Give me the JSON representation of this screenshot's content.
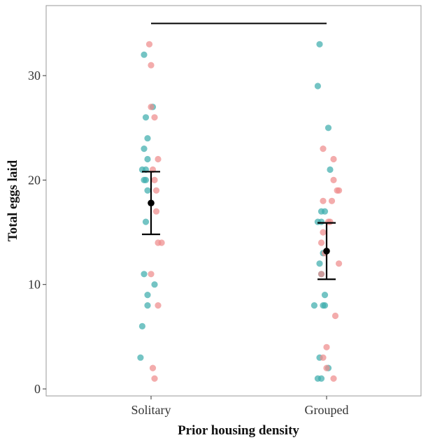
{
  "chart_data": {
    "type": "scatter",
    "xlabel": "Prior housing density",
    "ylabel": "Total eggs laid",
    "categories": [
      "Solitary",
      "Grouped"
    ],
    "ylim": [
      -0.8,
      35
    ],
    "yticks": [
      0,
      10,
      20,
      30
    ],
    "grid": false,
    "legend": "none",
    "colors": {
      "teal": "#3fadad",
      "pink": "#ee8c8c",
      "summary": "#000000"
    },
    "series": [
      {
        "group": "Solitary",
        "color": "teal",
        "points": [
          {
            "x": 0.96,
            "y": 32
          },
          {
            "x": 1.01,
            "y": 27
          },
          {
            "x": 0.97,
            "y": 26
          },
          {
            "x": 0.98,
            "y": 24
          },
          {
            "x": 0.96,
            "y": 23
          },
          {
            "x": 0.98,
            "y": 22
          },
          {
            "x": 0.95,
            "y": 21
          },
          {
            "x": 0.97,
            "y": 21
          },
          {
            "x": 0.96,
            "y": 20
          },
          {
            "x": 0.97,
            "y": 20
          },
          {
            "x": 0.98,
            "y": 19
          },
          {
            "x": 0.97,
            "y": 16
          },
          {
            "x": 0.96,
            "y": 11
          },
          {
            "x": 1.02,
            "y": 10
          },
          {
            "x": 0.98,
            "y": 9
          },
          {
            "x": 0.98,
            "y": 8
          },
          {
            "x": 0.95,
            "y": 6
          },
          {
            "x": 0.94,
            "y": 3
          }
        ]
      },
      {
        "group": "Solitary",
        "color": "pink",
        "points": [
          {
            "x": 0.99,
            "y": 33
          },
          {
            "x": 1.0,
            "y": 31
          },
          {
            "x": 1.0,
            "y": 27
          },
          {
            "x": 1.02,
            "y": 26
          },
          {
            "x": 1.04,
            "y": 22
          },
          {
            "x": 1.01,
            "y": 21
          },
          {
            "x": 1.02,
            "y": 20
          },
          {
            "x": 1.03,
            "y": 19
          },
          {
            "x": 1.03,
            "y": 17
          },
          {
            "x": 1.04,
            "y": 14
          },
          {
            "x": 1.06,
            "y": 14
          },
          {
            "x": 1.0,
            "y": 11
          },
          {
            "x": 1.04,
            "y": 8
          },
          {
            "x": 1.01,
            "y": 2
          },
          {
            "x": 1.02,
            "y": 1
          }
        ]
      },
      {
        "group": "Grouped",
        "color": "teal",
        "points": [
          {
            "x": 1.96,
            "y": 33
          },
          {
            "x": 1.95,
            "y": 29
          },
          {
            "x": 2.01,
            "y": 25
          },
          {
            "x": 2.02,
            "y": 21
          },
          {
            "x": 1.97,
            "y": 17
          },
          {
            "x": 1.99,
            "y": 17
          },
          {
            "x": 1.95,
            "y": 16
          },
          {
            "x": 1.97,
            "y": 16
          },
          {
            "x": 1.98,
            "y": 13
          },
          {
            "x": 1.96,
            "y": 12
          },
          {
            "x": 1.97,
            "y": 11
          },
          {
            "x": 1.99,
            "y": 9
          },
          {
            "x": 1.93,
            "y": 8
          },
          {
            "x": 1.98,
            "y": 8
          },
          {
            "x": 1.99,
            "y": 8
          },
          {
            "x": 1.96,
            "y": 3
          },
          {
            "x": 2.01,
            "y": 2
          },
          {
            "x": 1.95,
            "y": 1
          },
          {
            "x": 1.97,
            "y": 1
          }
        ]
      },
      {
        "group": "Grouped",
        "color": "pink",
        "points": [
          {
            "x": 1.98,
            "y": 23
          },
          {
            "x": 2.04,
            "y": 22
          },
          {
            "x": 2.04,
            "y": 20
          },
          {
            "x": 1.98,
            "y": 18
          },
          {
            "x": 2.03,
            "y": 18
          },
          {
            "x": 2.06,
            "y": 19
          },
          {
            "x": 2.07,
            "y": 19
          },
          {
            "x": 2.01,
            "y": 16
          },
          {
            "x": 2.02,
            "y": 16
          },
          {
            "x": 1.98,
            "y": 15
          },
          {
            "x": 1.97,
            "y": 14
          },
          {
            "x": 1.99,
            "y": 13
          },
          {
            "x": 2.07,
            "y": 12
          },
          {
            "x": 1.97,
            "y": 11
          },
          {
            "x": 2.05,
            "y": 7
          },
          {
            "x": 2.0,
            "y": 4
          },
          {
            "x": 1.98,
            "y": 3
          },
          {
            "x": 2.0,
            "y": 2
          },
          {
            "x": 2.04,
            "y": 1
          }
        ]
      }
    ],
    "summary": [
      {
        "category": "Solitary",
        "mean": 17.8,
        "lower": 14.8,
        "upper": 20.8
      },
      {
        "category": "Grouped",
        "mean": 13.2,
        "lower": 10.5,
        "upper": 15.9
      }
    ],
    "comparison_bracket": {
      "from": "Solitary",
      "to": "Grouped",
      "y": 35
    }
  }
}
